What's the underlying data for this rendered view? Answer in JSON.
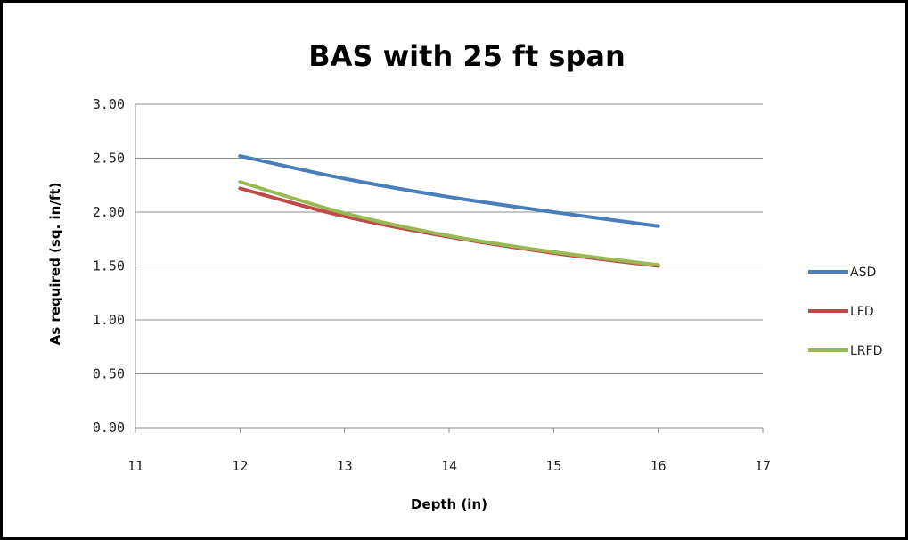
{
  "chart_data": {
    "type": "line",
    "title": "BAS with 25 ft span",
    "xlabel": "Depth (in)",
    "ylabel": "As required (sq. in/ft)",
    "xlim": [
      11,
      17
    ],
    "ylim": [
      0,
      3
    ],
    "x_ticks": [
      11,
      12,
      13,
      14,
      15,
      16,
      17
    ],
    "y_ticks": [
      "0.00",
      "0.50",
      "1.00",
      "1.50",
      "2.00",
      "2.50",
      "3.00"
    ],
    "grid": true,
    "legend_position": "right",
    "x": [
      12,
      13,
      14,
      15,
      16
    ],
    "series": [
      {
        "name": "ASD",
        "color": "#4a7ebb",
        "values": [
          2.52,
          2.31,
          2.14,
          2.0,
          1.87
        ]
      },
      {
        "name": "LFD",
        "color": "#be4b48",
        "values": [
          2.22,
          1.96,
          1.77,
          1.62,
          1.5
        ]
      },
      {
        "name": "LRFD",
        "color": "#98b954",
        "values": [
          2.28,
          1.99,
          1.78,
          1.63,
          1.51
        ]
      }
    ]
  }
}
